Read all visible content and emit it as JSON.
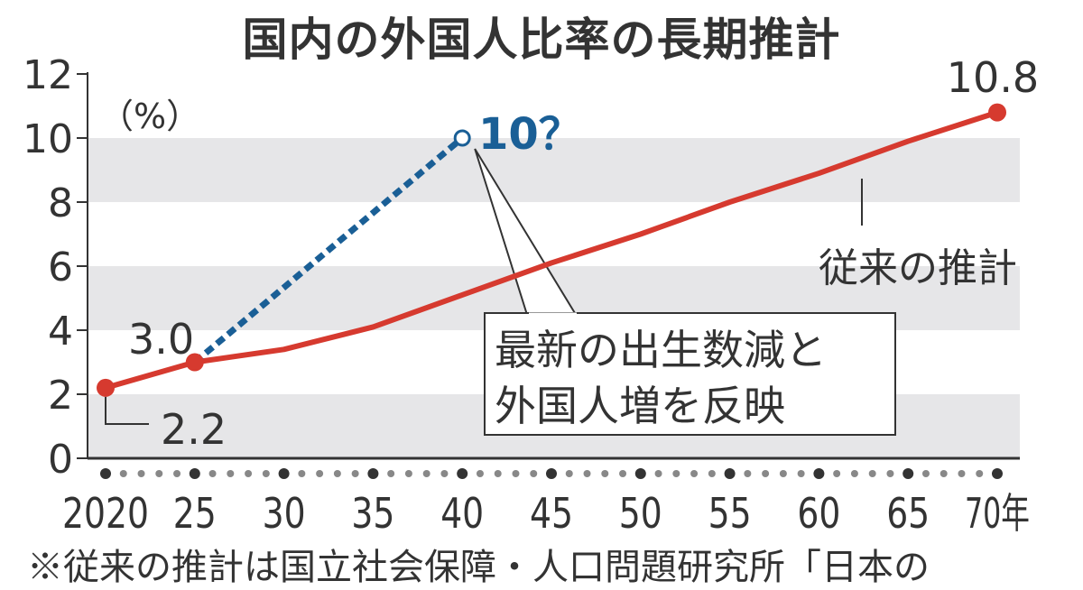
{
  "chart_data": {
    "type": "line",
    "title": "国内の外国人比率の長期推計",
    "ylabel": "（%）",
    "ylim": [
      0,
      12
    ],
    "yticks": [
      "0",
      "2",
      "4",
      "6",
      "8",
      "10",
      "12"
    ],
    "xlim": [
      2020,
      2070
    ],
    "xticks": [
      {
        "value": 2020,
        "label": "2020"
      },
      {
        "value": 2025,
        "label": "25"
      },
      {
        "value": 2030,
        "label": "30"
      },
      {
        "value": 2035,
        "label": "35"
      },
      {
        "value": 2040,
        "label": "40"
      },
      {
        "value": 2045,
        "label": "45"
      },
      {
        "value": 2050,
        "label": "50"
      },
      {
        "value": 2055,
        "label": "55"
      },
      {
        "value": 2060,
        "label": "60"
      },
      {
        "value": 2065,
        "label": "65"
      },
      {
        "value": 2070,
        "label": "70年"
      }
    ],
    "grid_bands": true,
    "series": [
      {
        "name": "従来の推計",
        "color": "#d63a2f",
        "style": "solid",
        "x": [
          2020,
          2025,
          2030,
          2035,
          2040,
          2045,
          2050,
          2055,
          2060,
          2065,
          2070
        ],
        "y": [
          2.2,
          3.0,
          3.4,
          4.1,
          5.1,
          6.1,
          7.0,
          8.0,
          8.9,
          9.9,
          10.8
        ]
      },
      {
        "name": "",
        "color": "#1a5f96",
        "style": "dotted",
        "x": [
          2025,
          2040
        ],
        "y": [
          3.0,
          10
        ]
      }
    ],
    "data_labels": {
      "start": "2.2",
      "mid": "3.0",
      "end": "10.8",
      "new": "10？"
    },
    "annotations": {
      "series_label": "従来の推計",
      "callout_line1": "最新の出生数減と",
      "callout_line2": "外国人増を反映"
    },
    "footnote": "※従来の推計は国立社会保障・人口問題研究所「日本の"
  }
}
